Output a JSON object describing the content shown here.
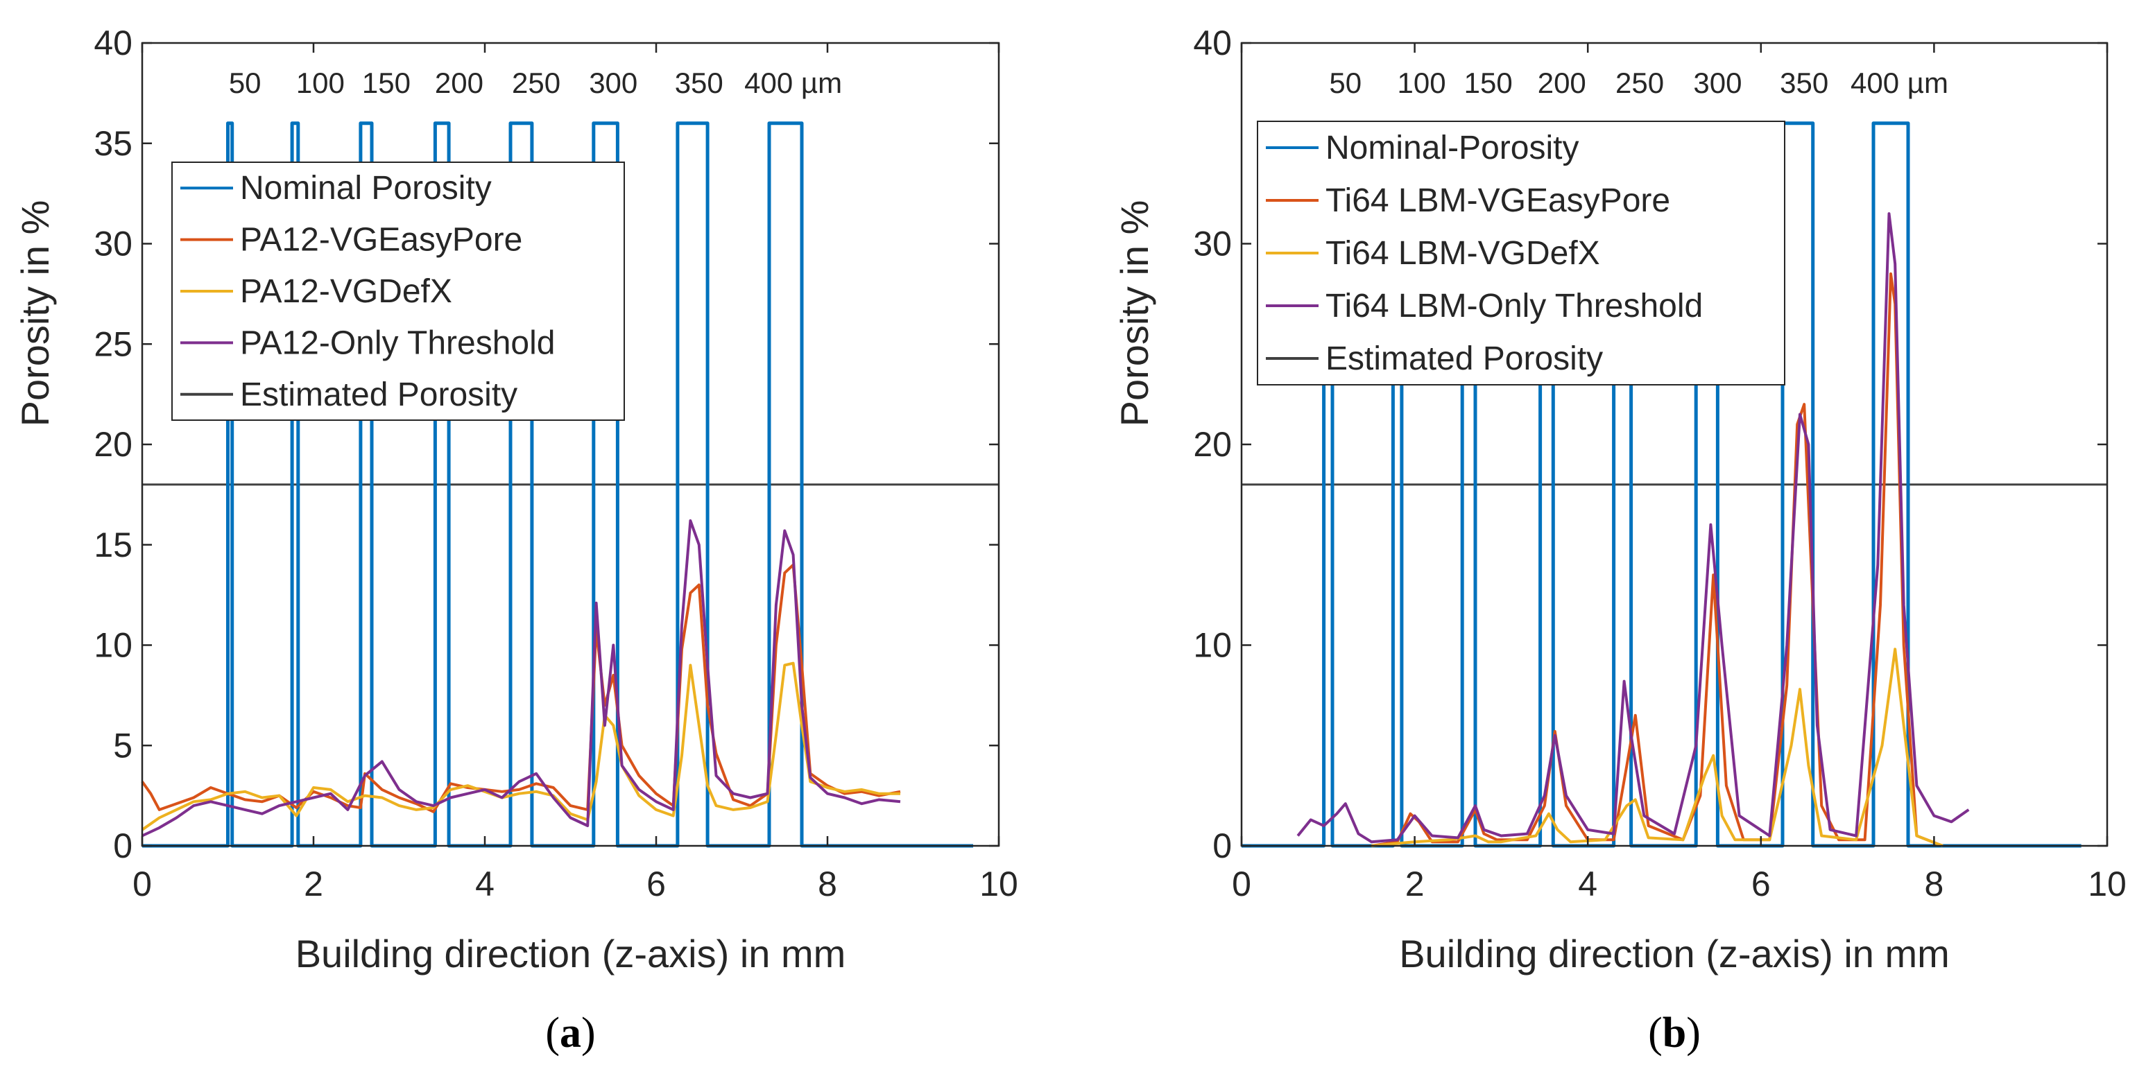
{
  "colors": {
    "nominal": "#0072BD",
    "easypore": "#D95319",
    "defx": "#EDB120",
    "threshold": "#7E2F8E",
    "estimated": "#404040",
    "axis": "#262626"
  },
  "chart_data": [
    {
      "id": "a",
      "type": "line",
      "panel_label": {
        "pre": "(",
        "letter": "a",
        "post": ")"
      },
      "xlabel": "Building direction (z-axis) in mm",
      "ylabel": "Porosity in %",
      "xlim": [
        0,
        10
      ],
      "ylim": [
        0,
        40
      ],
      "xticks": [
        0,
        2,
        4,
        6,
        8,
        10
      ],
      "yticks": [
        0,
        5,
        10,
        15,
        20,
        25,
        30,
        35,
        40
      ],
      "pore_size_annotations": [
        {
          "x": 1.2,
          "text": "50"
        },
        {
          "x": 2.08,
          "text": "100"
        },
        {
          "x": 2.85,
          "text": "150"
        },
        {
          "x": 3.7,
          "text": "200"
        },
        {
          "x": 4.6,
          "text": "250"
        },
        {
          "x": 5.5,
          "text": "300"
        },
        {
          "x": 6.5,
          "text": "350"
        },
        {
          "x": 7.6,
          "text": "400 µm"
        }
      ],
      "estimated_porosity": 18,
      "legend": {
        "position": "top-left",
        "items": [
          {
            "key": "nominal",
            "label": "Nominal Porosity"
          },
          {
            "key": "easypore",
            "label": "PA12-VGEasyPore"
          },
          {
            "key": "defx",
            "label": "PA12-VGDefX"
          },
          {
            "key": "threshold",
            "label": "PA12-Only Threshold"
          },
          {
            "key": "estimated",
            "label": "Estimated Porosity"
          }
        ]
      },
      "series": [
        {
          "name": "Nominal Porosity",
          "key": "nominal",
          "step": true,
          "x": [
            0,
            1.0,
            1.0,
            1.05,
            1.05,
            1.75,
            1.75,
            1.82,
            1.82,
            2.55,
            2.55,
            2.68,
            2.68,
            3.42,
            3.42,
            3.58,
            3.58,
            4.3,
            4.3,
            4.55,
            4.55,
            5.27,
            5.27,
            5.55,
            5.55,
            6.25,
            6.25,
            6.6,
            6.6,
            7.32,
            7.32,
            7.7,
            7.7,
            9.7
          ],
          "y": [
            0,
            0,
            36,
            36,
            0,
            0,
            36,
            36,
            0,
            0,
            36,
            36,
            0,
            0,
            36,
            36,
            0,
            0,
            36,
            36,
            0,
            0,
            36,
            36,
            0,
            0,
            36,
            36,
            0,
            0,
            36,
            36,
            0,
            0
          ]
        },
        {
          "name": "PA12-VGEasyPore",
          "key": "easypore",
          "x": [
            0,
            0.1,
            0.2,
            0.4,
            0.6,
            0.8,
            1.0,
            1.2,
            1.4,
            1.6,
            1.8,
            2.0,
            2.2,
            2.4,
            2.55,
            2.6,
            2.8,
            3.0,
            3.2,
            3.4,
            3.6,
            3.8,
            4.0,
            4.2,
            4.4,
            4.6,
            4.8,
            5.0,
            5.2,
            5.3,
            5.4,
            5.5,
            5.6,
            5.8,
            6.0,
            6.2,
            6.3,
            6.4,
            6.5,
            6.6,
            6.7,
            6.9,
            7.1,
            7.3,
            7.4,
            7.5,
            7.6,
            7.7,
            7.8,
            8.0,
            8.2,
            8.4,
            8.6,
            8.85
          ],
          "y": [
            3.2,
            2.6,
            1.8,
            2.1,
            2.4,
            2.9,
            2.6,
            2.3,
            2.2,
            2.5,
            1.9,
            2.7,
            2.4,
            2.0,
            1.9,
            3.6,
            2.8,
            2.4,
            2.1,
            1.7,
            3.1,
            2.9,
            2.8,
            2.7,
            2.8,
            3.1,
            2.9,
            2.0,
            1.8,
            10.8,
            7.0,
            8.5,
            5.0,
            3.5,
            2.6,
            2.0,
            9.8,
            12.6,
            13.0,
            7.0,
            4.6,
            2.3,
            2.0,
            2.6,
            10.0,
            13.6,
            14.0,
            9.0,
            3.6,
            3.0,
            2.6,
            2.7,
            2.5,
            2.7
          ]
        },
        {
          "name": "PA12-VGDefX",
          "key": "defx",
          "x": [
            0,
            0.2,
            0.4,
            0.6,
            0.8,
            1.0,
            1.2,
            1.4,
            1.6,
            1.8,
            2.0,
            2.2,
            2.4,
            2.6,
            2.8,
            3.0,
            3.2,
            3.4,
            3.6,
            3.8,
            4.0,
            4.2,
            4.4,
            4.6,
            4.8,
            5.0,
            5.2,
            5.3,
            5.4,
            5.5,
            5.6,
            5.8,
            6.0,
            6.2,
            6.3,
            6.4,
            6.5,
            6.6,
            6.7,
            6.9,
            7.1,
            7.3,
            7.4,
            7.5,
            7.6,
            7.7,
            7.8,
            8.0,
            8.2,
            8.4,
            8.6,
            8.85
          ],
          "y": [
            0.8,
            1.4,
            1.8,
            2.2,
            2.3,
            2.6,
            2.7,
            2.4,
            2.5,
            1.5,
            2.9,
            2.8,
            2.2,
            2.5,
            2.4,
            2.0,
            1.8,
            1.9,
            2.8,
            3.0,
            2.7,
            2.4,
            2.6,
            2.7,
            2.5,
            1.6,
            1.3,
            3.2,
            6.5,
            6.0,
            4.0,
            2.5,
            1.8,
            1.5,
            4.5,
            9.0,
            6.0,
            3.0,
            2.0,
            1.8,
            1.9,
            2.2,
            5.5,
            9.0,
            9.1,
            6.0,
            3.2,
            2.9,
            2.7,
            2.8,
            2.6,
            2.6
          ]
        },
        {
          "name": "PA12-Only Threshold",
          "key": "threshold",
          "x": [
            0,
            0.2,
            0.4,
            0.6,
            0.8,
            1.0,
            1.2,
            1.4,
            1.6,
            1.8,
            2.0,
            2.2,
            2.4,
            2.6,
            2.8,
            3.0,
            3.2,
            3.4,
            3.6,
            3.8,
            4.0,
            4.2,
            4.4,
            4.6,
            4.8,
            5.0,
            5.2,
            5.3,
            5.4,
            5.5,
            5.6,
            5.8,
            6.0,
            6.2,
            6.3,
            6.4,
            6.5,
            6.6,
            6.7,
            6.9,
            7.1,
            7.3,
            7.4,
            7.5,
            7.6,
            7.7,
            7.8,
            8.0,
            8.2,
            8.4,
            8.6,
            8.85
          ],
          "y": [
            0.5,
            0.9,
            1.4,
            2.0,
            2.2,
            2.0,
            1.8,
            1.6,
            2.0,
            2.2,
            2.4,
            2.6,
            1.8,
            3.5,
            4.2,
            2.8,
            2.2,
            2.0,
            2.4,
            2.6,
            2.8,
            2.4,
            3.2,
            3.6,
            2.4,
            1.4,
            1.0,
            12.1,
            6.0,
            10.0,
            4.0,
            2.8,
            2.2,
            1.8,
            11.0,
            16.2,
            15.0,
            9.0,
            3.5,
            2.6,
            2.4,
            2.6,
            12.0,
            15.7,
            14.5,
            7.0,
            3.4,
            2.6,
            2.4,
            2.1,
            2.3,
            2.2
          ]
        }
      ]
    },
    {
      "id": "b",
      "type": "line",
      "panel_label": {
        "pre": "(",
        "letter": "b",
        "post": ")"
      },
      "xlabel": "Building direction (z-axis) in mm",
      "ylabel": "Porosity in %",
      "xlim": [
        0,
        10
      ],
      "ylim": [
        0,
        40
      ],
      "xticks": [
        0,
        2,
        4,
        6,
        8,
        10
      ],
      "yticks": [
        0,
        10,
        20,
        30,
        40
      ],
      "pore_size_annotations": [
        {
          "x": 1.2,
          "text": "50"
        },
        {
          "x": 2.08,
          "text": "100"
        },
        {
          "x": 2.85,
          "text": "150"
        },
        {
          "x": 3.7,
          "text": "200"
        },
        {
          "x": 4.6,
          "text": "250"
        },
        {
          "x": 5.5,
          "text": "300"
        },
        {
          "x": 6.5,
          "text": "350"
        },
        {
          "x": 7.6,
          "text": "400 µm"
        }
      ],
      "estimated_porosity": 18,
      "legend": {
        "position": "top-left",
        "items": [
          {
            "key": "nominal",
            "label": "Nominal-Porosity"
          },
          {
            "key": "easypore",
            "label": "Ti64 LBM-VGEasyPore"
          },
          {
            "key": "defx",
            "label": "Ti64 LBM-VGDefX"
          },
          {
            "key": "threshold",
            "label": "Ti64 LBM-Only Threshold"
          },
          {
            "key": "estimated",
            "label": "Estimated Porosity"
          }
        ]
      },
      "series": [
        {
          "name": "Nominal-Porosity",
          "key": "nominal",
          "step": true,
          "x": [
            0,
            0.95,
            0.95,
            1.05,
            1.05,
            1.75,
            1.75,
            1.85,
            1.85,
            2.55,
            2.55,
            2.7,
            2.7,
            3.45,
            3.45,
            3.6,
            3.6,
            4.3,
            4.3,
            4.5,
            4.5,
            5.25,
            5.25,
            5.5,
            5.5,
            6.25,
            6.25,
            6.6,
            6.6,
            7.3,
            7.3,
            7.7,
            7.7,
            9.7
          ],
          "y": [
            0,
            0,
            36,
            36,
            0,
            0,
            36,
            36,
            0,
            0,
            36,
            36,
            0,
            0,
            36,
            36,
            0,
            0,
            36,
            36,
            0,
            0,
            36,
            36,
            0,
            0,
            36,
            36,
            0,
            0,
            36,
            36,
            0,
            0
          ]
        },
        {
          "name": "Ti64 LBM-VGEasyPore",
          "key": "easypore",
          "x": [
            1.5,
            1.8,
            1.95,
            2.05,
            2.2,
            2.5,
            2.7,
            2.8,
            2.95,
            3.3,
            3.5,
            3.62,
            3.75,
            4.0,
            4.3,
            4.45,
            4.55,
            4.7,
            5.1,
            5.3,
            5.45,
            5.6,
            5.8,
            6.1,
            6.3,
            6.42,
            6.5,
            6.6,
            6.7,
            6.9,
            7.2,
            7.38,
            7.5,
            7.55,
            7.65,
            7.8,
            8.1
          ],
          "y": [
            0,
            0.2,
            1.6,
            1.2,
            0.2,
            0.2,
            1.8,
            0.6,
            0.3,
            0.3,
            2.0,
            5.7,
            2.0,
            0.3,
            0.3,
            4.0,
            6.5,
            1.0,
            0.3,
            2.5,
            13.5,
            3.0,
            0.3,
            0.3,
            8.0,
            21.0,
            22.0,
            12.0,
            2.0,
            0.3,
            0.3,
            12.0,
            28.5,
            27.0,
            10.0,
            0.5,
            0
          ]
        },
        {
          "name": "Ti64 LBM-VGDefX",
          "key": "defx",
          "x": [
            1.5,
            2.0,
            2.4,
            2.7,
            2.85,
            3.0,
            3.4,
            3.55,
            3.65,
            3.8,
            4.2,
            4.45,
            4.55,
            4.7,
            5.1,
            5.35,
            5.45,
            5.55,
            5.7,
            6.1,
            6.35,
            6.45,
            6.55,
            6.7,
            7.1,
            7.4,
            7.55,
            7.65,
            7.8,
            8.1
          ],
          "y": [
            0,
            0.2,
            0.3,
            0.5,
            0.2,
            0.2,
            0.5,
            1.6,
            0.8,
            0.2,
            0.3,
            2.0,
            2.3,
            0.4,
            0.3,
            3.5,
            4.5,
            1.5,
            0.3,
            0.3,
            5.0,
            7.8,
            4.0,
            0.5,
            0.3,
            5.0,
            9.8,
            6.0,
            0.5,
            0
          ]
        },
        {
          "name": "Ti64 LBM-Only Threshold",
          "key": "threshold",
          "x": [
            0.65,
            0.8,
            0.95,
            1.1,
            1.2,
            1.35,
            1.5,
            1.8,
            2.0,
            2.2,
            2.5,
            2.7,
            2.8,
            3.0,
            3.3,
            3.5,
            3.62,
            3.75,
            4.0,
            4.3,
            4.42,
            4.5,
            4.65,
            5.0,
            5.25,
            5.42,
            5.55,
            5.75,
            6.1,
            6.3,
            6.45,
            6.55,
            6.65,
            6.8,
            7.1,
            7.35,
            7.48,
            7.55,
            7.65,
            7.8,
            8.0,
            8.2,
            8.4
          ],
          "y": [
            0.5,
            1.3,
            1.0,
            1.6,
            2.1,
            0.6,
            0.2,
            0.3,
            1.5,
            0.5,
            0.4,
            2.0,
            0.8,
            0.5,
            0.6,
            2.5,
            5.5,
            2.5,
            0.8,
            0.6,
            8.2,
            5.5,
            1.5,
            0.6,
            5.0,
            16.0,
            10.0,
            1.5,
            0.5,
            10.0,
            21.5,
            20.0,
            6.0,
            0.8,
            0.5,
            14.0,
            31.5,
            29.0,
            12.0,
            3.0,
            1.5,
            1.2,
            1.8
          ]
        }
      ]
    }
  ]
}
